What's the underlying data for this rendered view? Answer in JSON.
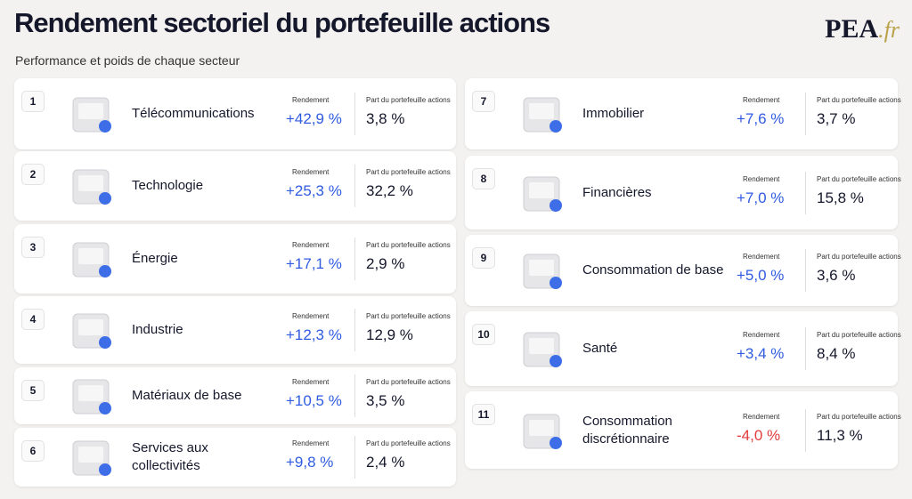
{
  "header": {
    "title": "Rendement sectoriel du portefeuille actions",
    "subtitle": "Performance et poids de chaque secteur",
    "logo": "PEA",
    "logo_suffix": ".fr"
  },
  "labels": {
    "return": "Rendement",
    "share": "Part du portefeuille actions"
  },
  "cards": [
    {
      "rank": "1",
      "name": "Télécommunications",
      "return": "+42,9 %",
      "share": "3,8 %",
      "color": "#2f5be0"
    },
    {
      "rank": "2",
      "name": "Technologie",
      "return": "+25,3 %",
      "share": "32,2 %",
      "color": "#2f5be0"
    },
    {
      "rank": "3",
      "name": "Énergie",
      "return": "+17,1 %",
      "share": "2,9 %",
      "color": "#2f5be0"
    },
    {
      "rank": "4",
      "name": "Industrie",
      "return": "+12,3 %",
      "share": "12,9 %",
      "color": "#2f5be0"
    },
    {
      "rank": "5",
      "name": "Matériaux de base",
      "return": "+10,5 %",
      "share": "3,5 %",
      "color": "#2f5be0"
    },
    {
      "rank": "6",
      "name": "Services aux collectivités",
      "return": "+9,8 %",
      "share": "2,4 %",
      "color": "#2f5be0"
    },
    {
      "rank": "7",
      "name": "Immobilier",
      "return": "+7,6 %",
      "share": "3,7 %",
      "color": "#2f5be0"
    },
    {
      "rank": "8",
      "name": "Financières",
      "return": "+7,0 %",
      "share": "15,8 %",
      "color": "#2f5be0"
    },
    {
      "rank": "9",
      "name": "Consommation de base",
      "return": "+5,0 %",
      "share": "3,6 %",
      "color": "#2f5be0"
    },
    {
      "rank": "10",
      "name": "Santé",
      "return": "+3,4 %",
      "share": "8,4 %",
      "color": "#2f5be0"
    },
    {
      "rank": "11",
      "name": "Consommation discrétionnaire",
      "return": "-4,0 %",
      "share": "11,3 %",
      "color": "#e23b3b"
    }
  ]
}
